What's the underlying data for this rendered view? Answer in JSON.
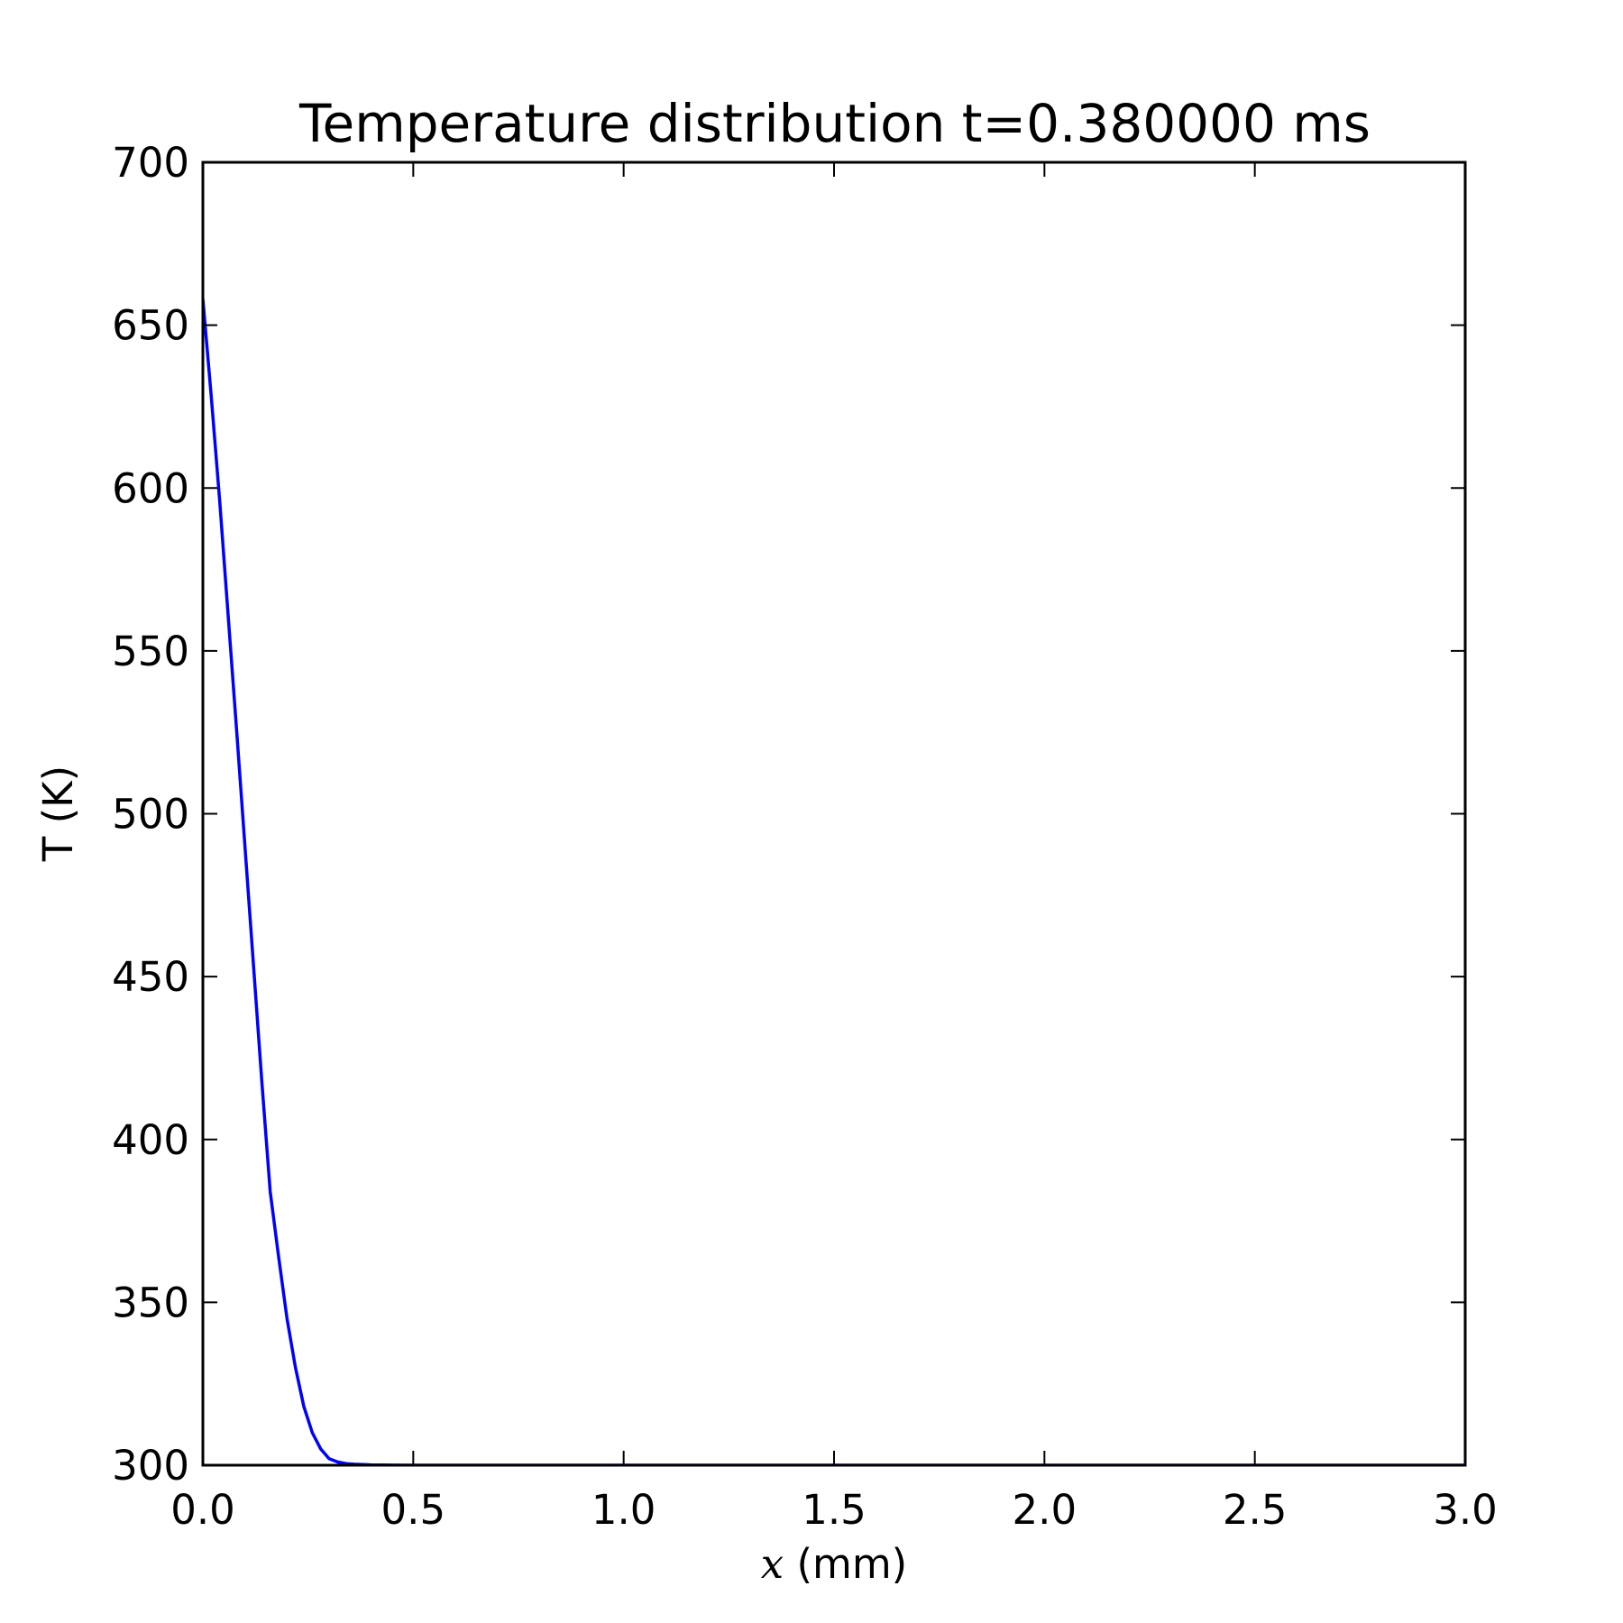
{
  "chart_data": {
    "type": "line",
    "title": "Temperature distribution t=0.380000 ms",
    "xlabel": {
      "var": "x",
      "unit": " (mm)"
    },
    "ylabel": "T (K)",
    "xlim": [
      0.0,
      3.0
    ],
    "ylim": [
      300,
      700
    ],
    "xticks": [
      0.0,
      0.5,
      1.0,
      1.5,
      2.0,
      2.5,
      3.0
    ],
    "xtick_labels": [
      "0.0",
      "0.5",
      "1.0",
      "1.5",
      "2.0",
      "2.5",
      "3.0"
    ],
    "yticks": [
      300,
      350,
      400,
      450,
      500,
      550,
      600,
      650,
      700
    ],
    "ytick_labels": [
      "300",
      "350",
      "400",
      "450",
      "500",
      "550",
      "600",
      "650",
      "700"
    ],
    "grid": false,
    "series": [
      {
        "color": "#0000ff",
        "x": [
          0.0,
          0.02,
          0.04,
          0.06,
          0.08,
          0.1,
          0.12,
          0.14,
          0.16,
          0.18,
          0.2,
          0.22,
          0.24,
          0.26,
          0.28,
          0.3,
          0.32,
          0.34,
          0.36,
          0.38,
          0.4,
          0.45,
          0.5,
          3.0
        ],
        "y": [
          658,
          628,
          596,
          561,
          526,
          490,
          454,
          418,
          384,
          364,
          345,
          330,
          318,
          310,
          305,
          302,
          301,
          300.5,
          300.3,
          300.2,
          300.1,
          300.05,
          300.0,
          300.0
        ]
      }
    ]
  }
}
